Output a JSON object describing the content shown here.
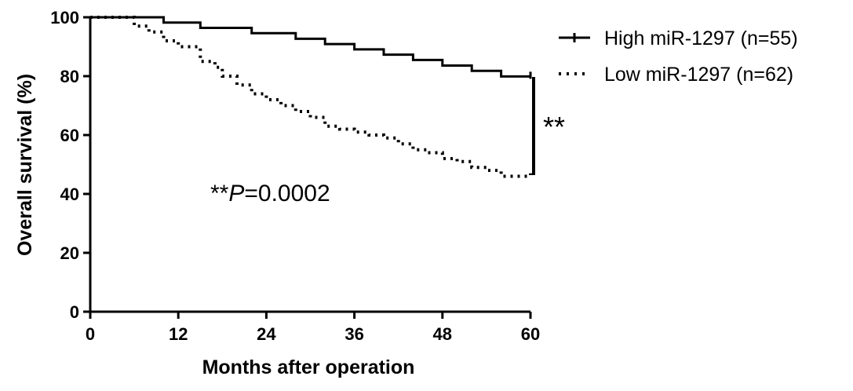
{
  "chart_data": {
    "type": "line",
    "title": "",
    "xlabel": "Months after operation",
    "ylabel": "Overall survival (%)",
    "xlim": [
      0,
      60
    ],
    "ylim": [
      0,
      100
    ],
    "xticks": [
      0,
      12,
      24,
      36,
      48,
      60
    ],
    "yticks": [
      0,
      20,
      40,
      60,
      80,
      100
    ],
    "grid": false,
    "legend_position": "top-right",
    "series": [
      {
        "name": "High miR-1297 (n=55)",
        "style": "solid-step",
        "color": "#000000",
        "x": [
          0,
          10,
          10,
          15,
          15,
          22,
          22,
          28,
          28,
          32,
          32,
          36,
          36,
          40,
          40,
          44,
          44,
          48,
          48,
          52,
          52,
          56,
          56,
          60
        ],
        "y": [
          100,
          100,
          98.2,
          98.2,
          96.4,
          96.4,
          94.6,
          94.6,
          92.7,
          92.7,
          90.9,
          90.9,
          89.1,
          89.1,
          87.3,
          87.3,
          85.5,
          85.5,
          83.6,
          83.6,
          81.8,
          81.8,
          79.9,
          79.9
        ]
      },
      {
        "name": "Low miR-1297 (n=62)",
        "style": "dotted-step",
        "color": "#000000",
        "x": [
          0,
          3,
          6,
          8,
          10,
          12,
          15,
          17,
          18,
          20,
          22,
          24,
          26,
          28,
          30,
          32,
          34,
          36,
          38,
          40,
          42,
          44,
          46,
          48,
          50,
          52,
          54,
          56,
          58,
          60
        ],
        "y": [
          100,
          100,
          97,
          95,
          92,
          90,
          85,
          83,
          80,
          77,
          74,
          72,
          70,
          68,
          66,
          63,
          62,
          61,
          60,
          59,
          57,
          55,
          54,
          52,
          51,
          49,
          48,
          46,
          46,
          47
        ]
      }
    ],
    "annotations": [
      {
        "text": "**P=0.0002",
        "prefix": "**",
        "italic": "P",
        "suffix": "=0.0002"
      },
      {
        "text": "**",
        "kind": "significance-bracket",
        "x": 60,
        "y_range": [
          47,
          80
        ]
      }
    ]
  }
}
